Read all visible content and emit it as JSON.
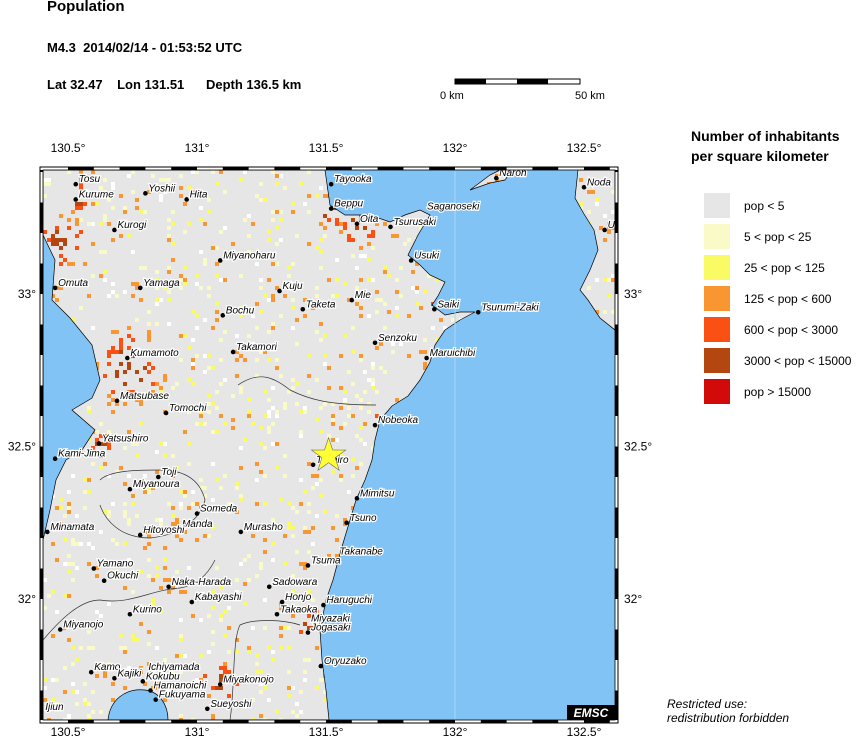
{
  "header": {
    "title": "Population",
    "event": "M4.3  2014/02/14 - 01:53:52 UTC",
    "location": "Lat 32.47    Lon 131.51      Depth 136.5 km"
  },
  "scale_bar": {
    "start_label": "0 km",
    "end_label": "50 km"
  },
  "legend": {
    "title_line1": "Number of inhabitants",
    "title_line2": "per square kilometer",
    "items": [
      {
        "label": "pop < 5",
        "color": "#e6e6e6"
      },
      {
        "label": "5 < pop < 25",
        "color": "#fafac8"
      },
      {
        "label": "25 < pop < 125",
        "color": "#fafa64"
      },
      {
        "label": "125 < pop < 600",
        "color": "#fa9632"
      },
      {
        "label": "600 < pop < 3000",
        "color": "#fa5014"
      },
      {
        "label": "3000 < pop < 15000",
        "color": "#b4460f"
      },
      {
        "label": "pop > 15000",
        "color": "#d20a0a"
      }
    ]
  },
  "map": {
    "water_color": "#82c3f5",
    "lon_ticks": [
      {
        "v": 130.5,
        "label": "130.5°"
      },
      {
        "v": 131,
        "label": "131°"
      },
      {
        "v": 131.5,
        "label": "131.5°"
      },
      {
        "v": 132,
        "label": "132°"
      },
      {
        "v": 132.5,
        "label": "132.5°"
      }
    ],
    "lat_ticks": [
      {
        "v": 33,
        "label": "33°"
      },
      {
        "v": 32.5,
        "label": "32.5°"
      },
      {
        "v": 32,
        "label": "32°"
      }
    ],
    "epicenter": {
      "lon": 131.51,
      "lat": 32.47,
      "icon": "star-icon",
      "color": "#ffff33"
    },
    "logo": "EMSC",
    "cities": [
      {
        "name": "Tosu",
        "lon": 130.53,
        "lat": 33.36
      },
      {
        "name": "Kurume",
        "lon": 130.53,
        "lat": 33.31
      },
      {
        "name": "Yoshii",
        "lon": 130.8,
        "lat": 33.33
      },
      {
        "name": "Hita",
        "lon": 130.96,
        "lat": 33.31
      },
      {
        "name": "Kurogi",
        "lon": 130.68,
        "lat": 33.21
      },
      {
        "name": "Miyanoharu",
        "lon": 131.09,
        "lat": 33.11
      },
      {
        "name": "Omuta",
        "lon": 130.45,
        "lat": 33.02
      },
      {
        "name": "Yamaga",
        "lon": 130.78,
        "lat": 33.02
      },
      {
        "name": "Kuju",
        "lon": 131.32,
        "lat": 33.01
      },
      {
        "name": "Taketa",
        "lon": 131.41,
        "lat": 32.95
      },
      {
        "name": "Bochu",
        "lon": 131.1,
        "lat": 32.93
      },
      {
        "name": "Takamori",
        "lon": 131.14,
        "lat": 32.81
      },
      {
        "name": "Kumamoto",
        "lon": 130.73,
        "lat": 32.79
      },
      {
        "name": "Tayooka",
        "lon": 131.52,
        "lat": 33.36
      },
      {
        "name": "Beppu",
        "lon": 131.52,
        "lat": 33.28
      },
      {
        "name": "Oita",
        "lon": 131.62,
        "lat": 33.23
      },
      {
        "name": "Tsurusaki",
        "lon": 131.75,
        "lat": 33.22
      },
      {
        "name": "Saganoseki",
        "lon": 131.88,
        "lat": 33.27,
        "nodot": true
      },
      {
        "name": "Usuki",
        "lon": 131.83,
        "lat": 33.11
      },
      {
        "name": "Mie",
        "lon": 131.6,
        "lat": 32.98
      },
      {
        "name": "Saiki",
        "lon": 131.92,
        "lat": 32.95
      },
      {
        "name": "Tsurumi-Zaki",
        "lon": 132.09,
        "lat": 32.94
      },
      {
        "name": "Senzoku",
        "lon": 131.69,
        "lat": 32.84
      },
      {
        "name": "Maruichibi",
        "lon": 131.89,
        "lat": 32.79
      },
      {
        "name": "Naroh",
        "lon": 132.16,
        "lat": 33.38
      },
      {
        "name": "Noda",
        "lon": 132.5,
        "lat": 33.35
      },
      {
        "name": "U",
        "lon": 132.58,
        "lat": 33.21
      },
      {
        "name": "Matsubase",
        "lon": 130.69,
        "lat": 32.65
      },
      {
        "name": "Tomochi",
        "lon": 130.88,
        "lat": 32.61
      },
      {
        "name": "Yatsushiro",
        "lon": 130.62,
        "lat": 32.51
      },
      {
        "name": "Kami-Jima",
        "lon": 130.45,
        "lat": 32.46
      },
      {
        "name": "Toji",
        "lon": 130.85,
        "lat": 32.4
      },
      {
        "name": "Miyanoura",
        "lon": 130.74,
        "lat": 32.36
      },
      {
        "name": "Someda",
        "lon": 131.0,
        "lat": 32.28
      },
      {
        "name": "Manda",
        "lon": 130.93,
        "lat": 32.23,
        "nodot": true
      },
      {
        "name": "Hitoyoshi",
        "lon": 130.78,
        "lat": 32.21
      },
      {
        "name": "Murasho",
        "lon": 131.17,
        "lat": 32.22
      },
      {
        "name": "Minamata",
        "lon": 130.42,
        "lat": 32.22
      },
      {
        "name": "Nobeoka",
        "lon": 131.69,
        "lat": 32.57
      },
      {
        "name": "Tashiro",
        "lon": 131.45,
        "lat": 32.44
      },
      {
        "name": "Mimitsu",
        "lon": 131.62,
        "lat": 32.33
      },
      {
        "name": "Tsuno",
        "lon": 131.58,
        "lat": 32.25
      },
      {
        "name": "Takanabe",
        "lon": 131.54,
        "lat": 32.14,
        "nodot": true
      },
      {
        "name": "Tsuma",
        "lon": 131.43,
        "lat": 32.11
      },
      {
        "name": "Yamano",
        "lon": 130.6,
        "lat": 32.1
      },
      {
        "name": "Okuchi",
        "lon": 130.64,
        "lat": 32.06
      },
      {
        "name": "Naka-Harada",
        "lon": 130.89,
        "lat": 32.04
      },
      {
        "name": "Sadowara",
        "lon": 131.28,
        "lat": 32.04
      },
      {
        "name": "Kabayashi",
        "lon": 130.98,
        "lat": 31.99
      },
      {
        "name": "Honjo",
        "lon": 131.33,
        "lat": 31.99
      },
      {
        "name": "Haruguchi",
        "lon": 131.49,
        "lat": 31.98
      },
      {
        "name": "Kurino",
        "lon": 130.74,
        "lat": 31.95
      },
      {
        "name": "Takaoka",
        "lon": 131.31,
        "lat": 31.95
      },
      {
        "name": "Miyanojo",
        "lon": 130.47,
        "lat": 31.9
      },
      {
        "name": "Miyazaki",
        "lon": 131.43,
        "lat": 31.92,
        "nodot": true
      },
      {
        "name": "Jogasaki",
        "lon": 131.43,
        "lat": 31.89
      },
      {
        "name": "Oryuzako",
        "lon": 131.48,
        "lat": 31.78
      },
      {
        "name": "Kamo",
        "lon": 130.59,
        "lat": 31.76
      },
      {
        "name": "Kajiki",
        "lon": 130.68,
        "lat": 31.74
      },
      {
        "name": "Ichiyamada",
        "lon": 130.8,
        "lat": 31.76,
        "nodot": true
      },
      {
        "name": "Kokubu",
        "lon": 130.79,
        "lat": 31.73
      },
      {
        "name": "Hamanoichi",
        "lon": 130.82,
        "lat": 31.7
      },
      {
        "name": "Miyakonojo",
        "lon": 131.09,
        "lat": 31.72
      },
      {
        "name": "Fukuyama",
        "lon": 130.84,
        "lat": 31.67
      },
      {
        "name": "Sueyoshi",
        "lon": 131.04,
        "lat": 31.64
      },
      {
        "name": "Ijiun",
        "lon": 130.4,
        "lat": 31.63,
        "nodot": true
      }
    ]
  },
  "footer": {
    "line1": "Restricted use:",
    "line2": "redistribution forbidden"
  }
}
